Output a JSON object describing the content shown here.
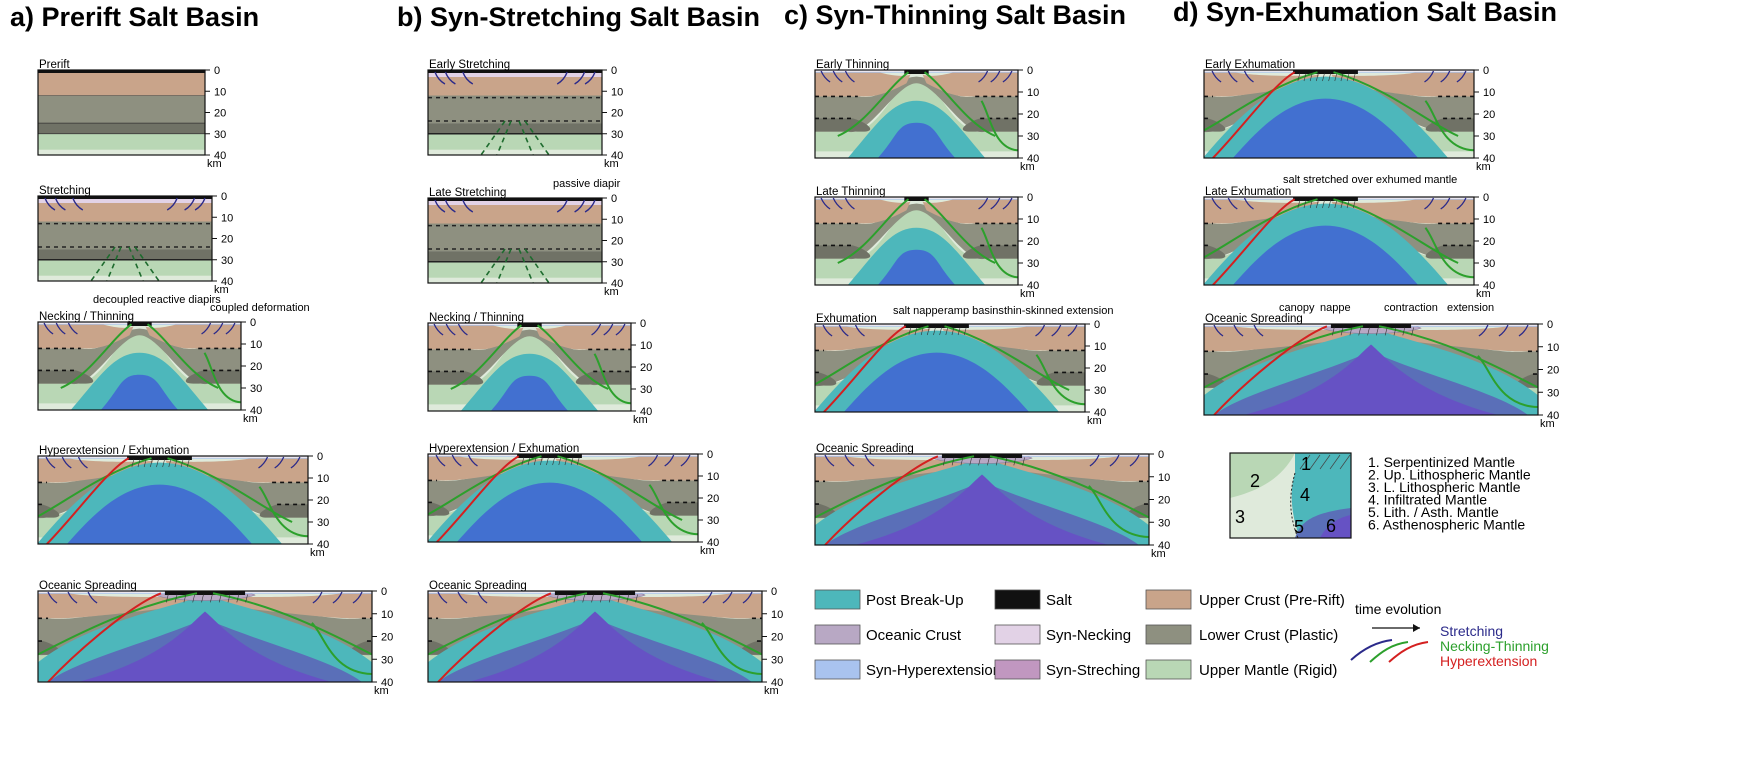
{
  "panel_titles": {
    "a": "a) Prerift Salt Basin",
    "b": "b) Syn-Stretching Salt Basin",
    "c": "c) Syn-Thinning Salt Basin",
    "d": "d) Syn-Exhumation Salt Basin"
  },
  "depth_scale": {
    "ticks": [
      "0",
      "10",
      "20",
      "30",
      "40"
    ],
    "unit": "km"
  },
  "stages": {
    "prerift": "Prerift",
    "stretching": "Stretching",
    "necking_thinning": "Necking / Thinning",
    "hyperextension_exhumation": "Hyperextension / Exhumation",
    "oceanic_spreading": "Oceanic Spreading",
    "early_stretching": "Early Stretching",
    "late_stretching": "Late Stretching",
    "early_thinning": "Early Thinning",
    "late_thinning": "Late Thinning",
    "exhumation": "Exhumation",
    "early_exhumation": "Early Exhumation",
    "late_exhumation": "Late Exhumation"
  },
  "annotations": {
    "decoupled": "decoupled reactive diapirs",
    "coupled": "coupled deformation",
    "passive": "passive diapir",
    "salt_nappe": "salt nappe",
    "ramp_basins": "ramp basins",
    "thin_skinned": "thin-skinned extension",
    "salt_stretched": "salt stretched over exhumed mantle",
    "canopy": "canopy",
    "nappe": "nappe",
    "contraction": "contraction",
    "extension": "extension"
  },
  "colors": {
    "upper_crust": "#c9a48a",
    "lower_crust": "#8e9080",
    "lower_crust_dark": "#707266",
    "upper_mantle": "#b9d7b5",
    "upper_mantle_light": "#dfeadb",
    "post_breakup": "#4db7bb",
    "oceanic_crust": "#b8a8c4",
    "syn_hyperextension": "#a9c3ef",
    "salt": "#111111",
    "syn_necking": "#e2d2e6",
    "syn_stretching": "#c197c0",
    "mantle_blue": "#4270d0",
    "asthenosphere": "#6652c4",
    "lith_asth": "#5a6fb8",
    "stretching_line": "#2b2a8a",
    "necking_line": "#2ca02c",
    "hyper_line": "#d42020"
  },
  "legend": {
    "items": [
      {
        "label": "Post Break-Up",
        "color": "#4db7bb"
      },
      {
        "label": "Oceanic Crust",
        "color": "#b8a8c4"
      },
      {
        "label": "Syn-Hyperextension",
        "color": "#a9c3ef"
      },
      {
        "label": "Salt",
        "color": "#111111"
      },
      {
        "label": "Syn-Necking",
        "color": "#e2d2e6"
      },
      {
        "label": "Syn-Streching",
        "color": "#c197c0"
      },
      {
        "label": "Upper Crust (Pre-Rift)",
        "color": "#c9a48a"
      },
      {
        "label": "Lower Crust (Plastic)",
        "color": "#8e9080"
      },
      {
        "label": "Upper Mantle (Rigid)",
        "color": "#b9d7b5"
      }
    ],
    "time_evolution": "time evolution",
    "stretching": "Stretching",
    "necking_thinning": "Necking-Thinning",
    "hyperextension": "Hyperextension"
  },
  "mantle_key": {
    "numbers": [
      "1",
      "2",
      "3",
      "4",
      "5",
      "6"
    ],
    "items": [
      "1. Serpentinized Mantle",
      "2. Up. Lithospheric Mantle",
      "3. L. Lithospheric Mantle",
      "4. Infiltrated Mantle",
      "5. Lith. / Asth. Mantle",
      "6. Asthenospheric Mantle"
    ]
  }
}
